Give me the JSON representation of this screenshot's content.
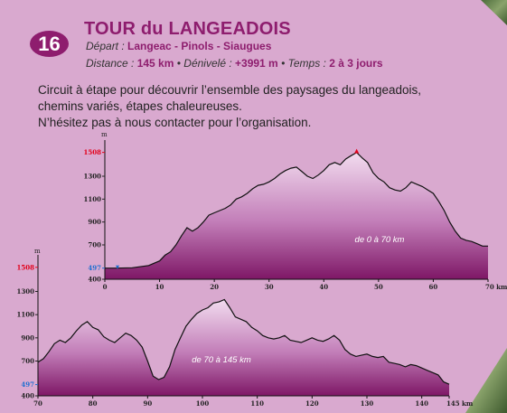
{
  "header": {
    "number": "16",
    "title": "TOUR du LANGEADOIS",
    "depart_label": "Départ :",
    "depart_value": "Langeac - Pinols - Siaugues",
    "distance_label": "Distance :",
    "distance_value": "145 km",
    "denivele_label": "Dénivelé :",
    "denivele_value": "+3991 m",
    "temps_label": "Temps :",
    "temps_value": "2 à 3 jours",
    "separator": "•"
  },
  "description": [
    "Circuit à étape pour découvrir l’ensemble des paysages du langeadois,",
    "chemins variés, étapes chaleureuses.",
    "N’hésitez pas à nous contacter pour l’organisation."
  ],
  "colors": {
    "background": "#d9a9cf",
    "accent": "#8e1d6e",
    "marker_red": "#e2001a",
    "marker_blue": "#1f6fd0"
  },
  "chart_data": [
    {
      "type": "area",
      "title": "",
      "annotation": "de 0 à 70 km",
      "ylabel": "m",
      "xlabel": "",
      "x_unit": "km",
      "xlim": [
        0,
        70
      ],
      "ylim": [
        400,
        1600
      ],
      "x_ticks": [
        0,
        10,
        20,
        30,
        40,
        50,
        60,
        70
      ],
      "x_tick_labels": [
        "0",
        "10",
        "20",
        "30",
        "40",
        "50",
        "60",
        "70 km"
      ],
      "y_ticks": [
        400,
        497,
        700,
        900,
        1100,
        1300,
        1508
      ],
      "y_tick_labels": [
        "400",
        "497",
        "700",
        "900",
        "1100",
        "1300",
        "1508"
      ],
      "y_min_value": 497,
      "y_max_value": 1508,
      "grid": false,
      "x": [
        0,
        2,
        5,
        8,
        10,
        11,
        12,
        13,
        14,
        15,
        16,
        17,
        18,
        19,
        20,
        21,
        22,
        23,
        24,
        25,
        26,
        27,
        28,
        29,
        30,
        31,
        32,
        33,
        34,
        35,
        36,
        37,
        38,
        39,
        40,
        41,
        42,
        43,
        44,
        45,
        46,
        47,
        48,
        49,
        50,
        51,
        52,
        53,
        54,
        55,
        56,
        57,
        58,
        59,
        60,
        61,
        62,
        63,
        64,
        65,
        66,
        67,
        68,
        69,
        70
      ],
      "y": [
        497,
        497,
        500,
        520,
        560,
        610,
        640,
        700,
        780,
        850,
        820,
        850,
        900,
        960,
        980,
        1000,
        1020,
        1050,
        1100,
        1120,
        1150,
        1190,
        1220,
        1230,
        1250,
        1280,
        1320,
        1350,
        1370,
        1380,
        1340,
        1300,
        1280,
        1310,
        1350,
        1400,
        1420,
        1400,
        1450,
        1480,
        1508,
        1460,
        1420,
        1330,
        1280,
        1250,
        1200,
        1180,
        1170,
        1200,
        1250,
        1230,
        1210,
        1180,
        1150,
        1080,
        1000,
        900,
        820,
        760,
        740,
        730,
        710,
        690,
        690
      ]
    },
    {
      "type": "area",
      "title": "",
      "annotation": "de 70 à 145 km",
      "ylabel": "m",
      "xlabel": "",
      "x_unit": "km",
      "xlim": [
        70,
        145
      ],
      "ylim": [
        400,
        1600
      ],
      "x_ticks": [
        70,
        80,
        90,
        100,
        110,
        120,
        130,
        140,
        145
      ],
      "x_tick_labels": [
        "70",
        "80",
        "90",
        "100",
        "110",
        "120",
        "130",
        "140",
        "145 km"
      ],
      "y_ticks": [
        400,
        497,
        700,
        900,
        1100,
        1300,
        1508
      ],
      "y_tick_labels": [
        "400",
        "497",
        "700",
        "900",
        "1100",
        "1300",
        "1508"
      ],
      "y_min_value": 497,
      "y_max_value": 1508,
      "grid": false,
      "x": [
        70,
        71,
        72,
        73,
        74,
        75,
        76,
        77,
        78,
        79,
        80,
        81,
        82,
        83,
        84,
        85,
        86,
        87,
        88,
        89,
        90,
        91,
        92,
        93,
        94,
        95,
        96,
        97,
        98,
        99,
        100,
        101,
        102,
        103,
        104,
        105,
        106,
        107,
        108,
        109,
        110,
        111,
        112,
        113,
        114,
        115,
        116,
        117,
        118,
        119,
        120,
        121,
        122,
        123,
        124,
        125,
        126,
        127,
        128,
        129,
        130,
        131,
        132,
        133,
        134,
        135,
        136,
        137,
        138,
        139,
        140,
        141,
        142,
        143,
        144,
        145
      ],
      "y": [
        690,
        720,
        780,
        850,
        880,
        860,
        900,
        960,
        1010,
        1040,
        990,
        970,
        910,
        880,
        860,
        900,
        940,
        920,
        880,
        820,
        700,
        570,
        540,
        560,
        650,
        800,
        900,
        1000,
        1060,
        1110,
        1140,
        1160,
        1200,
        1210,
        1230,
        1160,
        1080,
        1060,
        1040,
        990,
        960,
        920,
        900,
        890,
        900,
        920,
        880,
        870,
        860,
        880,
        900,
        880,
        870,
        890,
        920,
        880,
        800,
        760,
        740,
        750,
        760,
        740,
        730,
        740,
        690,
        680,
        670,
        650,
        670,
        660,
        640,
        620,
        600,
        580,
        520,
        500
      ]
    }
  ]
}
